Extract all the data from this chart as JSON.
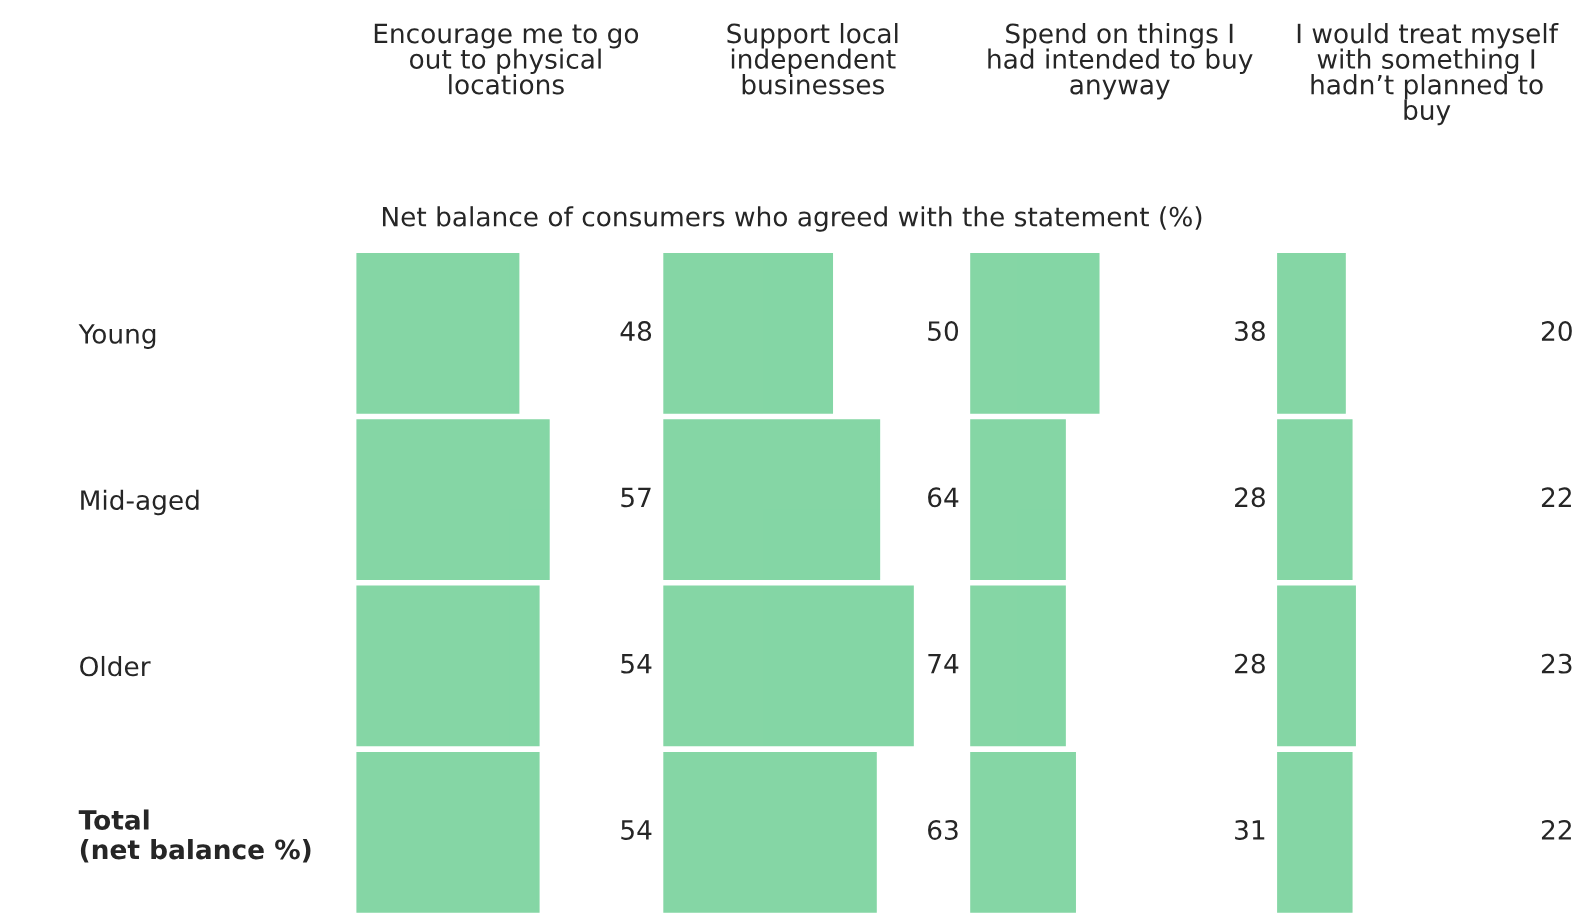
{
  "chart_data": [
    {
      "type": "bar",
      "orientation": "horizontal",
      "title": "Encourage me to go\nout to physical\nlocations",
      "subtitle": "Net balance of consumers who agreed with the statement (%)",
      "categories": [
        "Young",
        "Mid-aged",
        "Older",
        "Total\n(net balance %)"
      ],
      "values": [
        48,
        57,
        54,
        54
      ],
      "color": "#5cc987",
      "data_labels": true,
      "tick_labels": "y",
      "grid": false,
      "legend": false
    },
    {
      "type": "bar",
      "orientation": "horizontal",
      "title": "Support local\nindependent\nbusinesses",
      "categories": [
        null,
        null,
        null,
        null
      ],
      "values": [
        50,
        64,
        74,
        63
      ],
      "color": "#5cc987",
      "data_labels": true,
      "tick_labels": false,
      "grid": false,
      "legend": false
    },
    {
      "type": "bar",
      "orientation": "horizontal",
      "title": "Spend on things I\nhad intended to buy\nanyway",
      "categories": [
        null,
        null,
        null,
        null
      ],
      "values": [
        38,
        28,
        28,
        31
      ],
      "color": "#5cc987",
      "data_labels": true,
      "tick_labels": false,
      "grid": false,
      "legend": false
    },
    {
      "type": "bar",
      "orientation": "horizontal",
      "title": "I would treat myself\nwith something I\nhadn’t planned to\nbuy",
      "categories": [
        null,
        null,
        null,
        null
      ],
      "values": [
        20,
        22,
        23,
        22
      ],
      "color": "#5cc987",
      "data_labels": true,
      "tick_labels": false,
      "grid": false,
      "legend": false
    }
  ]
}
